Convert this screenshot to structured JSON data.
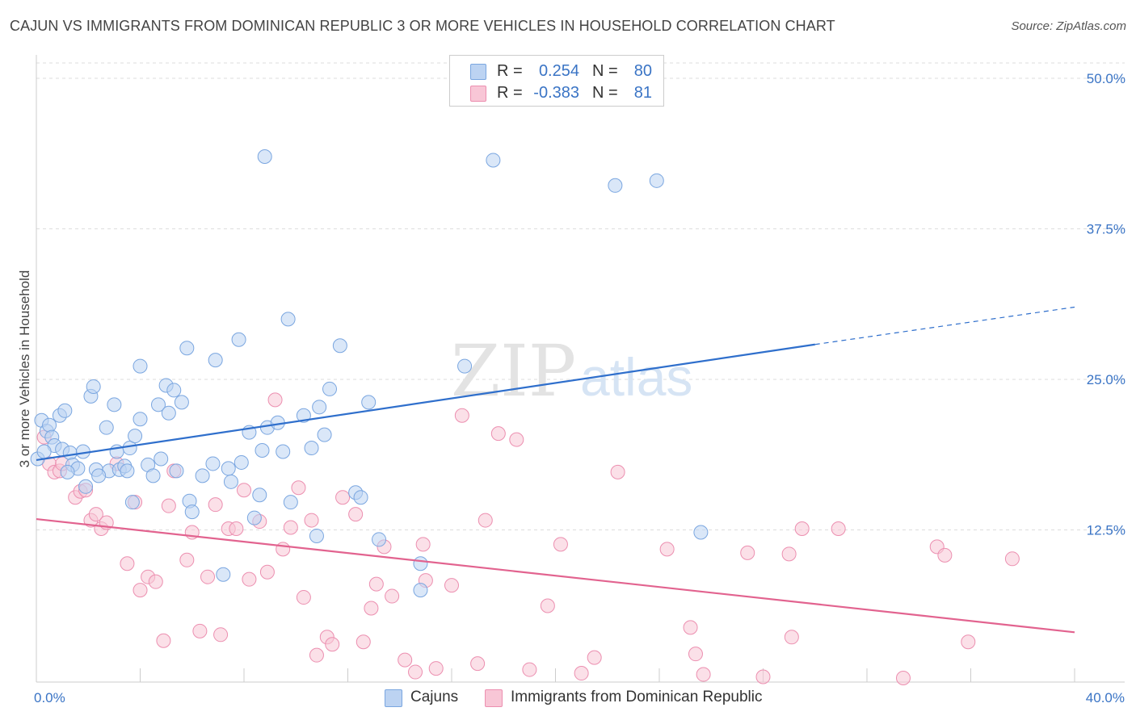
{
  "title": "CAJUN VS IMMIGRANTS FROM DOMINICAN REPUBLIC 3 OR MORE VEHICLES IN HOUSEHOLD CORRELATION CHART",
  "source": "Source: ZipAtlas.com",
  "watermark": {
    "zip": "ZIP",
    "atlas": "atlas"
  },
  "legend": {
    "rows": [
      {
        "r_label": "R =",
        "r_value": "0.254",
        "n_label": "N =",
        "n_value": "80"
      },
      {
        "r_label": "R =",
        "r_value": "-0.383",
        "n_label": "N =",
        "n_value": "81"
      }
    ],
    "bottom": [
      {
        "label": "Cajuns"
      },
      {
        "label": "Immigrants from Dominican Republic"
      }
    ]
  },
  "colors": {
    "cajun_fill": "#bcd3f2",
    "cajun_stroke": "#7aa6e0",
    "cajun_line": "#2f6fcc",
    "dr_fill": "#f8c6d6",
    "dr_stroke": "#ec8fb0",
    "dr_line": "#e2638f",
    "value_text": "#3a74c5",
    "grid": "#dddddd"
  },
  "chart_data": {
    "type": "scatter",
    "ylabel": "3 or more Vehicles in Household",
    "xlabel": "",
    "xlim": [
      0,
      40
    ],
    "ylim": [
      0,
      52
    ],
    "x_tick_labels": [
      {
        "value": 0,
        "label": "0.0%"
      },
      {
        "value": 40,
        "label": "40.0%"
      }
    ],
    "y_tick_labels": [
      {
        "value": 12.5,
        "label": "12.5%"
      },
      {
        "value": 25.0,
        "label": "25.0%"
      },
      {
        "value": 37.5,
        "label": "37.5%"
      },
      {
        "value": 50.0,
        "label": "50.0%"
      }
    ],
    "x_minor_ticks": [
      0,
      4,
      8,
      12,
      16,
      20,
      24,
      28,
      32,
      36,
      40
    ],
    "grid": true,
    "series": [
      {
        "name": "Cajuns",
        "r": 0.254,
        "n": 80,
        "trend": {
          "x0": 0,
          "y0": 18.3,
          "x1": 30,
          "y1": 27.9,
          "dash_to_x": 40,
          "dash_to_y": 31.0
        },
        "points": [
          [
            0.2,
            21.6
          ],
          [
            0.4,
            20.7
          ],
          [
            0.5,
            21.2
          ],
          [
            0.6,
            20.2
          ],
          [
            0.7,
            19.5
          ],
          [
            0.9,
            22.0
          ],
          [
            1.0,
            19.2
          ],
          [
            1.1,
            22.4
          ],
          [
            1.3,
            18.9
          ],
          [
            1.4,
            17.9
          ],
          [
            1.6,
            17.6
          ],
          [
            1.8,
            19.0
          ],
          [
            1.9,
            16.1
          ],
          [
            2.1,
            23.6
          ],
          [
            2.2,
            24.4
          ],
          [
            2.3,
            17.5
          ],
          [
            2.7,
            21.0
          ],
          [
            2.8,
            17.4
          ],
          [
            3.0,
            22.9
          ],
          [
            3.1,
            19.0
          ],
          [
            3.2,
            17.5
          ],
          [
            3.4,
            17.8
          ],
          [
            3.5,
            17.4
          ],
          [
            3.6,
            19.3
          ],
          [
            3.7,
            14.8
          ],
          [
            3.8,
            20.3
          ],
          [
            4.0,
            21.7
          ],
          [
            4.0,
            26.1
          ],
          [
            4.3,
            17.9
          ],
          [
            4.5,
            17.0
          ],
          [
            4.7,
            22.9
          ],
          [
            4.8,
            18.4
          ],
          [
            5.0,
            24.5
          ],
          [
            5.1,
            22.2
          ],
          [
            5.3,
            24.1
          ],
          [
            5.4,
            17.4
          ],
          [
            5.6,
            23.1
          ],
          [
            5.8,
            27.6
          ],
          [
            5.9,
            14.9
          ],
          [
            6.0,
            14.0
          ],
          [
            6.4,
            17.0
          ],
          [
            6.8,
            18.0
          ],
          [
            6.9,
            26.6
          ],
          [
            7.2,
            8.8
          ],
          [
            7.4,
            17.6
          ],
          [
            7.5,
            16.5
          ],
          [
            7.8,
            28.3
          ],
          [
            7.9,
            18.1
          ],
          [
            8.2,
            20.6
          ],
          [
            8.4,
            13.5
          ],
          [
            8.6,
            15.4
          ],
          [
            8.7,
            19.1
          ],
          [
            8.8,
            43.5
          ],
          [
            8.9,
            21.0
          ],
          [
            9.3,
            21.4
          ],
          [
            9.5,
            19.0
          ],
          [
            9.7,
            30.0
          ],
          [
            9.8,
            14.8
          ],
          [
            10.3,
            22.0
          ],
          [
            10.6,
            19.3
          ],
          [
            10.8,
            12.0
          ],
          [
            10.9,
            22.7
          ],
          [
            11.1,
            20.4
          ],
          [
            11.3,
            24.2
          ],
          [
            11.7,
            27.8
          ],
          [
            12.3,
            15.6
          ],
          [
            12.5,
            15.2
          ],
          [
            12.8,
            23.1
          ],
          [
            13.2,
            11.7
          ],
          [
            14.8,
            9.7
          ],
          [
            14.8,
            7.5
          ],
          [
            16.5,
            26.1
          ],
          [
            17.6,
            43.2
          ],
          [
            22.3,
            41.1
          ],
          [
            23.9,
            41.5
          ],
          [
            25.6,
            12.3
          ],
          [
            0.05,
            18.4
          ],
          [
            0.3,
            19.0
          ],
          [
            2.4,
            17.0
          ],
          [
            1.2,
            17.3
          ]
        ]
      },
      {
        "name": "Immigrants from Dominican Republic",
        "r": -0.383,
        "n": 81,
        "trend": {
          "x0": 0,
          "y0": 13.4,
          "x1": 40,
          "y1": 4.0
        },
        "points": [
          [
            0.3,
            20.2
          ],
          [
            0.5,
            18.0
          ],
          [
            0.7,
            17.3
          ],
          [
            0.9,
            17.4
          ],
          [
            1.0,
            18.0
          ],
          [
            1.5,
            15.2
          ],
          [
            1.7,
            15.7
          ],
          [
            1.9,
            15.8
          ],
          [
            2.1,
            13.3
          ],
          [
            2.3,
            13.8
          ],
          [
            2.5,
            12.6
          ],
          [
            2.7,
            13.1
          ],
          [
            3.1,
            18.0
          ],
          [
            3.5,
            9.7
          ],
          [
            3.8,
            14.8
          ],
          [
            4.0,
            7.5
          ],
          [
            4.3,
            8.6
          ],
          [
            4.6,
            8.2
          ],
          [
            4.9,
            3.3
          ],
          [
            5.1,
            14.5
          ],
          [
            5.3,
            17.4
          ],
          [
            5.8,
            10.0
          ],
          [
            6.0,
            12.3
          ],
          [
            6.3,
            4.1
          ],
          [
            6.6,
            8.6
          ],
          [
            6.9,
            14.6
          ],
          [
            7.1,
            3.8
          ],
          [
            7.4,
            12.6
          ],
          [
            7.7,
            12.6
          ],
          [
            8.0,
            15.8
          ],
          [
            8.2,
            8.4
          ],
          [
            8.6,
            13.2
          ],
          [
            8.9,
            9.0
          ],
          [
            9.2,
            23.3
          ],
          [
            9.5,
            10.9
          ],
          [
            9.8,
            12.7
          ],
          [
            10.1,
            16.0
          ],
          [
            10.3,
            6.9
          ],
          [
            10.6,
            13.3
          ],
          [
            10.8,
            2.1
          ],
          [
            11.2,
            3.6
          ],
          [
            11.4,
            3.0
          ],
          [
            11.8,
            15.2
          ],
          [
            12.3,
            13.8
          ],
          [
            12.6,
            3.2
          ],
          [
            12.9,
            6.0
          ],
          [
            13.1,
            8.0
          ],
          [
            13.4,
            11.1
          ],
          [
            13.7,
            7.0
          ],
          [
            14.2,
            1.7
          ],
          [
            14.6,
            0.7
          ],
          [
            14.9,
            11.3
          ],
          [
            15.0,
            8.3
          ],
          [
            15.4,
            1.0
          ],
          [
            16.0,
            7.9
          ],
          [
            16.4,
            22.0
          ],
          [
            17.0,
            1.4
          ],
          [
            17.3,
            13.3
          ],
          [
            17.8,
            20.5
          ],
          [
            18.5,
            20.0
          ],
          [
            19.0,
            0.9
          ],
          [
            19.7,
            6.2
          ],
          [
            20.2,
            11.3
          ],
          [
            21.0,
            0.6
          ],
          [
            21.5,
            1.9
          ],
          [
            22.4,
            17.3
          ],
          [
            24.3,
            10.9
          ],
          [
            25.2,
            4.4
          ],
          [
            25.4,
            2.2
          ],
          [
            25.7,
            0.5
          ],
          [
            27.4,
            10.6
          ],
          [
            28.0,
            0.3
          ],
          [
            29.0,
            10.5
          ],
          [
            29.1,
            3.6
          ],
          [
            29.5,
            12.6
          ],
          [
            30.9,
            12.6
          ],
          [
            33.4,
            0.2
          ],
          [
            34.7,
            11.1
          ],
          [
            35.0,
            10.4
          ],
          [
            35.9,
            3.2
          ],
          [
            37.6,
            10.1
          ]
        ]
      }
    ]
  }
}
